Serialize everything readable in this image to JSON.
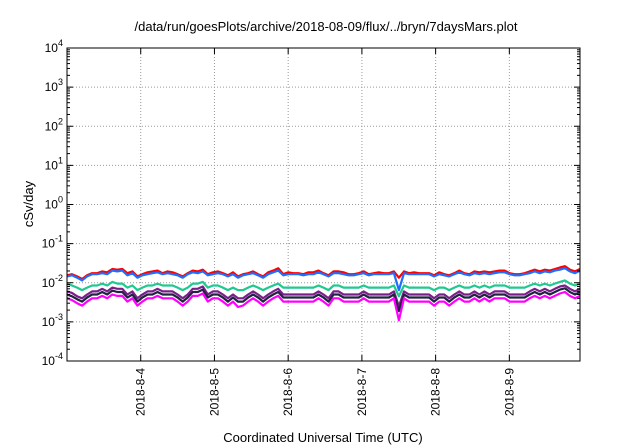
{
  "chart_data": {
    "type": "line",
    "title": "/data/run/goesPlots/archive/2018-08-09/flux/../bryn/7daysMars.plot",
    "xlabel": "Coordinated Universal Time (UTC)",
    "ylabel": "cSv/day",
    "x_ticks": [
      "2018-8-4",
      "2018-8-5",
      "2018-8-6",
      "2018-8-7",
      "2018-8-8",
      "2018-8-9"
    ],
    "x_range": [
      "2018-08-03T00:00",
      "2018-08-09T23:00"
    ],
    "y_scale": "log",
    "ylim": [
      0.0001,
      10000
    ],
    "y_ticks": [
      {
        "base": "10",
        "exp": "-4"
      },
      {
        "base": "10",
        "exp": "-3"
      },
      {
        "base": "10",
        "exp": "-2"
      },
      {
        "base": "10",
        "exp": "-1"
      },
      {
        "base": "10",
        "exp": "0"
      },
      {
        "base": "10",
        "exp": "1"
      },
      {
        "base": "10",
        "exp": "2"
      },
      {
        "base": "10",
        "exp": "3"
      },
      {
        "base": "10",
        "exp": "4"
      }
    ],
    "grid": true,
    "series": [
      {
        "color": "#ff0000",
        "values": [
          0.0155,
          0.0165,
          0.0145,
          0.0125,
          0.0155,
          0.0175,
          0.0175,
          0.0195,
          0.0185,
          0.0225,
          0.0215,
          0.0225,
          0.0175,
          0.0195,
          0.0145,
          0.0165,
          0.0185,
          0.0195,
          0.0205,
          0.0175,
          0.0195,
          0.0185,
          0.0165,
          0.0145,
          0.0175,
          0.0205,
          0.0195,
          0.0215,
          0.0165,
          0.0185,
          0.0195,
          0.0175,
          0.0155,
          0.0185,
          0.0145,
          0.0165,
          0.0175,
          0.0195,
          0.0165,
          0.0145,
          0.0185,
          0.0205,
          0.0235,
          0.0165,
          0.0185,
          0.0175,
          0.0175,
          0.0165,
          0.0185,
          0.0185,
          0.0205,
          0.0175,
          0.0155,
          0.0195,
          0.0195,
          0.0185,
          0.0165,
          0.0165,
          0.0175,
          0.0195,
          0.0165,
          0.0175,
          0.0185,
          0.0175,
          0.0175,
          0.0195,
          0.0135,
          0.0195,
          0.0175,
          0.0185,
          0.0175,
          0.0175,
          0.0175,
          0.0155,
          0.0185,
          0.0165,
          0.0155,
          0.0175,
          0.0205,
          0.0175,
          0.0165,
          0.0195,
          0.0185,
          0.0195,
          0.0185,
          0.0195,
          0.0205,
          0.0205,
          0.0175,
          0.0165,
          0.0165,
          0.0175,
          0.0195,
          0.0215,
          0.0195,
          0.0215,
          0.0205,
          0.0225,
          0.0245,
          0.0265,
          0.0215,
          0.0195,
          0.0225
        ]
      },
      {
        "color": "#1e6fff",
        "values": [
          0.0145,
          0.0155,
          0.0135,
          0.0115,
          0.0145,
          0.0165,
          0.0165,
          0.0175,
          0.0165,
          0.0205,
          0.0195,
          0.0205,
          0.0155,
          0.0175,
          0.0135,
          0.0155,
          0.0165,
          0.0175,
          0.0185,
          0.0165,
          0.0175,
          0.0165,
          0.0155,
          0.0135,
          0.0165,
          0.0185,
          0.0175,
          0.0195,
          0.0155,
          0.0165,
          0.0175,
          0.0165,
          0.0145,
          0.0165,
          0.0135,
          0.0155,
          0.0165,
          0.0175,
          0.0155,
          0.0135,
          0.0165,
          0.0185,
          0.0205,
          0.0155,
          0.0165,
          0.0165,
          0.0165,
          0.0155,
          0.0165,
          0.0165,
          0.0185,
          0.0165,
          0.0145,
          0.0175,
          0.0175,
          0.0165,
          0.0155,
          0.0155,
          0.0165,
          0.0175,
          0.0155,
          0.0165,
          0.0165,
          0.0165,
          0.0165,
          0.0175,
          0.0065,
          0.0175,
          0.0165,
          0.0165,
          0.0165,
          0.0165,
          0.0165,
          0.0145,
          0.0165,
          0.0155,
          0.0145,
          0.0165,
          0.0185,
          0.0165,
          0.0155,
          0.0175,
          0.0165,
          0.0175,
          0.0165,
          0.0175,
          0.0185,
          0.0185,
          0.0165,
          0.0155,
          0.0155,
          0.0165,
          0.0175,
          0.0195,
          0.0175,
          0.0195,
          0.0185,
          0.0205,
          0.0215,
          0.0235,
          0.0195,
          0.0175,
          0.0205
        ]
      },
      {
        "color": "#1fc990",
        "values": [
          0.0095,
          0.0085,
          0.0075,
          0.0065,
          0.0075,
          0.0085,
          0.0085,
          0.0095,
          0.0085,
          0.0105,
          0.0095,
          0.0095,
          0.0075,
          0.0085,
          0.0065,
          0.0075,
          0.0085,
          0.0085,
          0.0095,
          0.0085,
          0.0085,
          0.0085,
          0.0075,
          0.0065,
          0.0075,
          0.0095,
          0.0095,
          0.0105,
          0.0075,
          0.0085,
          0.0085,
          0.0075,
          0.0065,
          0.0075,
          0.0065,
          0.0065,
          0.0075,
          0.0085,
          0.0075,
          0.0065,
          0.0075,
          0.0085,
          0.0095,
          0.0075,
          0.0075,
          0.0075,
          0.0075,
          0.0075,
          0.0075,
          0.0075,
          0.0085,
          0.0075,
          0.0065,
          0.0085,
          0.0085,
          0.0075,
          0.0075,
          0.0075,
          0.0075,
          0.0085,
          0.0075,
          0.0075,
          0.0075,
          0.0075,
          0.0075,
          0.0085,
          0.0045,
          0.0085,
          0.0075,
          0.0075,
          0.0075,
          0.0075,
          0.0075,
          0.0065,
          0.0075,
          0.0075,
          0.0065,
          0.0075,
          0.0085,
          0.0075,
          0.0075,
          0.0085,
          0.0075,
          0.0085,
          0.0075,
          0.0085,
          0.0085,
          0.0085,
          0.0075,
          0.0075,
          0.0075,
          0.0075,
          0.0085,
          0.0095,
          0.0085,
          0.0095,
          0.0085,
          0.0095,
          0.0105,
          0.0115,
          0.0095,
          0.0085,
          0.0095
        ]
      },
      {
        "color": "#7a1f8a",
        "values": [
          0.006,
          0.0055,
          0.0045,
          0.004,
          0.005,
          0.006,
          0.006,
          0.007,
          0.006,
          0.0075,
          0.007,
          0.007,
          0.005,
          0.006,
          0.004,
          0.005,
          0.006,
          0.006,
          0.007,
          0.006,
          0.006,
          0.006,
          0.005,
          0.004,
          0.005,
          0.007,
          0.007,
          0.008,
          0.005,
          0.006,
          0.006,
          0.005,
          0.004,
          0.005,
          0.004,
          0.004,
          0.005,
          0.006,
          0.005,
          0.004,
          0.005,
          0.006,
          0.007,
          0.005,
          0.005,
          0.005,
          0.005,
          0.005,
          0.005,
          0.005,
          0.006,
          0.005,
          0.004,
          0.006,
          0.006,
          0.005,
          0.005,
          0.005,
          0.005,
          0.006,
          0.005,
          0.005,
          0.005,
          0.005,
          0.005,
          0.006,
          0.0025,
          0.006,
          0.005,
          0.005,
          0.005,
          0.005,
          0.005,
          0.004,
          0.005,
          0.005,
          0.004,
          0.005,
          0.006,
          0.005,
          0.005,
          0.006,
          0.005,
          0.006,
          0.005,
          0.006,
          0.006,
          0.006,
          0.005,
          0.005,
          0.005,
          0.005,
          0.006,
          0.007,
          0.006,
          0.007,
          0.006,
          0.007,
          0.008,
          0.0085,
          0.007,
          0.006,
          0.007
        ]
      },
      {
        "color": "#1f2540",
        "values": [
          0.005,
          0.0045,
          0.0038,
          0.0033,
          0.0042,
          0.005,
          0.005,
          0.0058,
          0.005,
          0.0063,
          0.0058,
          0.0058,
          0.0042,
          0.005,
          0.0033,
          0.0042,
          0.005,
          0.005,
          0.0058,
          0.005,
          0.005,
          0.005,
          0.0042,
          0.0033,
          0.0042,
          0.0058,
          0.0058,
          0.0067,
          0.0042,
          0.005,
          0.005,
          0.0042,
          0.0033,
          0.0042,
          0.0033,
          0.0033,
          0.0042,
          0.005,
          0.0042,
          0.0033,
          0.0042,
          0.005,
          0.0058,
          0.0042,
          0.0042,
          0.0042,
          0.0042,
          0.0042,
          0.0042,
          0.0042,
          0.005,
          0.0042,
          0.0033,
          0.005,
          0.005,
          0.0042,
          0.0042,
          0.0042,
          0.0042,
          0.005,
          0.0042,
          0.0042,
          0.0042,
          0.0042,
          0.0042,
          0.005,
          0.0019,
          0.005,
          0.0042,
          0.0042,
          0.0042,
          0.0042,
          0.0042,
          0.0033,
          0.0042,
          0.0042,
          0.0033,
          0.0042,
          0.005,
          0.0042,
          0.0042,
          0.005,
          0.0042,
          0.005,
          0.0042,
          0.005,
          0.005,
          0.005,
          0.0042,
          0.0042,
          0.0042,
          0.0042,
          0.005,
          0.0058,
          0.005,
          0.0058,
          0.005,
          0.0058,
          0.0067,
          0.0072,
          0.0058,
          0.005,
          0.0058
        ]
      },
      {
        "color": "#ff00ff",
        "values": [
          0.004,
          0.0036,
          0.003,
          0.0026,
          0.0033,
          0.004,
          0.004,
          0.0046,
          0.004,
          0.005,
          0.0046,
          0.0046,
          0.0033,
          0.004,
          0.0026,
          0.0033,
          0.004,
          0.004,
          0.0046,
          0.004,
          0.004,
          0.004,
          0.0033,
          0.0026,
          0.0033,
          0.0046,
          0.0046,
          0.0053,
          0.0033,
          0.004,
          0.004,
          0.0033,
          0.0026,
          0.0033,
          0.0024,
          0.0026,
          0.0033,
          0.004,
          0.0033,
          0.0026,
          0.0033,
          0.004,
          0.0046,
          0.0033,
          0.0033,
          0.0033,
          0.0033,
          0.0033,
          0.0033,
          0.0033,
          0.004,
          0.0033,
          0.0026,
          0.004,
          0.004,
          0.0033,
          0.0033,
          0.0033,
          0.0033,
          0.004,
          0.0033,
          0.0033,
          0.0033,
          0.0033,
          0.0033,
          0.004,
          0.0011,
          0.004,
          0.0033,
          0.0033,
          0.0033,
          0.0033,
          0.0033,
          0.0026,
          0.0033,
          0.0033,
          0.0026,
          0.0033,
          0.004,
          0.0033,
          0.0033,
          0.004,
          0.0033,
          0.004,
          0.0033,
          0.004,
          0.004,
          0.004,
          0.0033,
          0.0033,
          0.0033,
          0.0033,
          0.004,
          0.0046,
          0.004,
          0.0046,
          0.004,
          0.0046,
          0.0053,
          0.0058,
          0.0046,
          0.004,
          0.0046
        ]
      }
    ]
  }
}
